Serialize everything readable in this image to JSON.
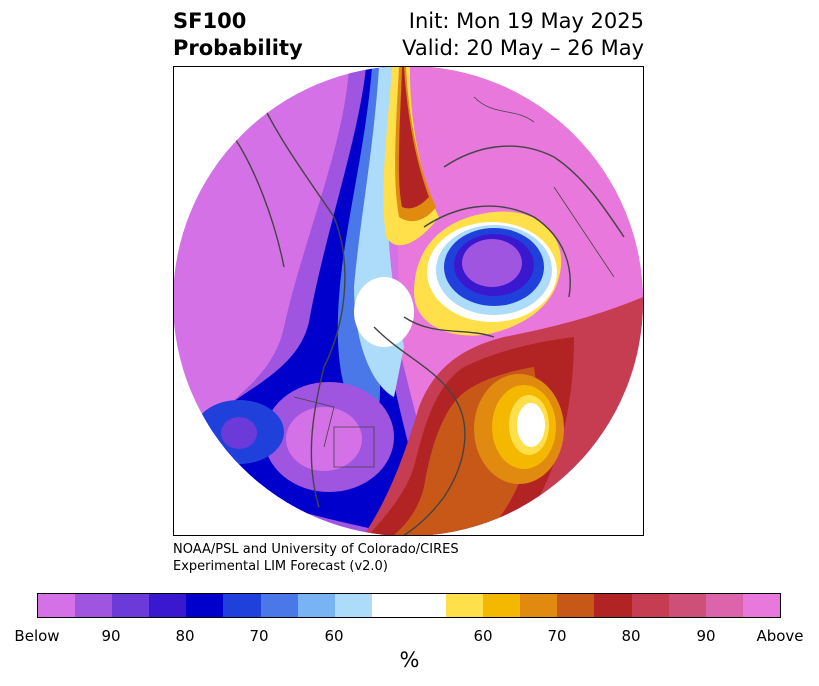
{
  "title": {
    "line1_left": "SF100",
    "line2_left": "Probability",
    "line1_right": "Init: Mon 19 May 2025",
    "line2_right": "Valid: 20 May – 26 May"
  },
  "credit": {
    "line1": "NOAA/PSL and University of Colorado/CIRES",
    "line2": "Experimental LIM Forecast (v2.0)"
  },
  "colorbar": {
    "colors": [
      "#d471e6",
      "#a055e0",
      "#6b3ad8",
      "#3a18d0",
      "#0000cc",
      "#2040dc",
      "#4a78e8",
      "#78b4f4",
      "#acdcfa",
      "#ffffff",
      "#ffffff",
      "#ffe04a",
      "#f5b800",
      "#e08a10",
      "#c85818",
      "#b22424",
      "#c63c50",
      "#cc5078",
      "#dc64aa",
      "#e878dc"
    ],
    "ticks": [
      "Below",
      "90",
      "80",
      "70",
      "60",
      "60",
      "70",
      "80",
      "90",
      "Above"
    ],
    "unit": "%"
  }
}
